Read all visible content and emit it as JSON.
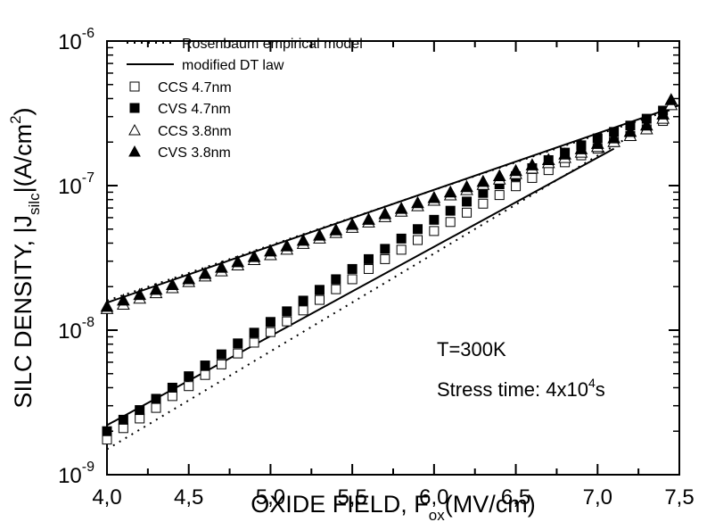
{
  "chart_data": {
    "type": "scatter",
    "title": "",
    "xlabel": {
      "main": "OXIDE FIELD, F",
      "sub": "ox",
      "tail": "(MV/cm)"
    },
    "ylabel": {
      "main": "SILC DENSITY, |J",
      "sub": "silc",
      "mid": "|(A/cm",
      "sup": "2",
      "tail": ")"
    },
    "x_scale": "linear",
    "y_scale": "log",
    "xlim": [
      4.0,
      7.5
    ],
    "ylim": [
      1e-09,
      1e-06
    ],
    "x_ticks": [
      4.0,
      4.5,
      5.0,
      5.5,
      6.0,
      6.5,
      7.0,
      7.5
    ],
    "x_tick_labels": [
      "4,0",
      "4,5",
      "5,0",
      "5,5",
      "6,0",
      "6,5",
      "7,0",
      "7,5"
    ],
    "y_ticks": [
      {
        "value": 1e-09,
        "base": "10",
        "exp": "-9"
      },
      {
        "value": 1e-08,
        "base": "10",
        "exp": "-8"
      },
      {
        "value": 1e-07,
        "base": "10",
        "exp": "-7"
      },
      {
        "value": 1e-06,
        "base": "10",
        "exp": "-6"
      }
    ],
    "grid": false,
    "legend_position": "top-left",
    "annotations": {
      "temperature": "T=300K",
      "stress_prefix": "Stress time: 4x10",
      "stress_exp": "4",
      "stress_suffix": "s"
    },
    "series": [
      {
        "name": "Rosenbaum empirical model",
        "kind": "line",
        "style": "dotted",
        "segments": [
          {
            "x": [
              4.0,
              7.2
            ],
            "y": [
              1.5e-09,
              2.2e-07
            ]
          },
          {
            "x": [
              4.0,
              7.5
            ],
            "y": [
              1.6e-08,
              3.5e-07
            ]
          }
        ]
      },
      {
        "name": "modified DT law",
        "kind": "line",
        "style": "solid",
        "segments": [
          {
            "x": [
              4.0,
              7.1
            ],
            "y": [
              2.2e-09,
              1.8e-07
            ]
          },
          {
            "x": [
              4.0,
              7.5
            ],
            "y": [
              1.55e-08,
              3.6e-07
            ]
          }
        ]
      },
      {
        "name": "CCS 4.7nm",
        "kind": "marker",
        "marker": "square-open",
        "x": [
          4.0,
          4.1,
          4.2,
          4.3,
          4.4,
          4.5,
          4.6,
          4.7,
          4.8,
          4.9,
          5.0,
          5.1,
          5.2,
          5.3,
          5.4,
          5.5,
          5.6,
          5.7,
          5.8,
          5.9,
          6.0,
          6.1,
          6.2,
          6.3,
          6.4,
          6.5,
          6.6,
          6.7,
          6.8,
          6.9,
          7.0,
          7.1,
          7.2,
          7.3,
          7.4
        ],
        "y": [
          1.75e-09,
          2.1e-09,
          2.45e-09,
          2.9e-09,
          3.5e-09,
          4.1e-09,
          4.9e-09,
          5.8e-09,
          6.9e-09,
          8.2e-09,
          9.7e-09,
          1.15e-08,
          1.37e-08,
          1.62e-08,
          1.92e-08,
          2.25e-08,
          2.65e-08,
          3.1e-08,
          3.6e-08,
          4.2e-08,
          4.85e-08,
          5.6e-08,
          6.5e-08,
          7.5e-08,
          8.6e-08,
          9.9e-08,
          1.13e-07,
          1.28e-07,
          1.45e-07,
          1.62e-07,
          1.8e-07,
          2e-07,
          2.2e-07,
          2.45e-07,
          2.8e-07
        ]
      },
      {
        "name": "CVS 4.7nm",
        "kind": "marker",
        "marker": "square-filled",
        "x": [
          4.0,
          4.1,
          4.2,
          4.3,
          4.4,
          4.5,
          4.6,
          4.7,
          4.8,
          4.9,
          5.0,
          5.1,
          5.2,
          5.3,
          5.4,
          5.5,
          5.6,
          5.7,
          5.8,
          5.9,
          6.0,
          6.1,
          6.2,
          6.3,
          6.4,
          6.5,
          6.6,
          6.7,
          6.8,
          6.9,
          7.0,
          7.1,
          7.2,
          7.3,
          7.4
        ],
        "y": [
          2e-09,
          2.4e-09,
          2.8e-09,
          3.35e-09,
          4e-09,
          4.8e-09,
          5.7e-09,
          6.8e-09,
          8.1e-09,
          9.6e-09,
          1.14e-08,
          1.35e-08,
          1.6e-08,
          1.9e-08,
          2.25e-08,
          2.65e-08,
          3.1e-08,
          3.65e-08,
          4.3e-08,
          5e-08,
          5.8e-08,
          6.7e-08,
          7.75e-08,
          8.9e-08,
          1.02e-07,
          1.16e-07,
          1.32e-07,
          1.5e-07,
          1.69e-07,
          1.9e-07,
          2.12e-07,
          2.35e-07,
          2.6e-07,
          2.9e-07,
          3.3e-07
        ]
      },
      {
        "name": "CCS 3.8nm",
        "kind": "marker",
        "marker": "triangle-open",
        "x": [
          4.0,
          4.1,
          4.2,
          4.3,
          4.4,
          4.5,
          4.6,
          4.7,
          4.8,
          4.9,
          5.0,
          5.1,
          5.2,
          5.3,
          5.4,
          5.5,
          5.6,
          5.7,
          5.8,
          5.9,
          6.0,
          6.1,
          6.2,
          6.3,
          6.4,
          6.5,
          6.6,
          6.7,
          6.8,
          6.9,
          7.0,
          7.1,
          7.2,
          7.3,
          7.4,
          7.45
        ],
        "y": [
          1.4e-08,
          1.5e-08,
          1.65e-08,
          1.8e-08,
          1.95e-08,
          2.15e-08,
          2.35e-08,
          2.55e-08,
          2.8e-08,
          3.05e-08,
          3.3e-08,
          3.6e-08,
          3.95e-08,
          4.3e-08,
          4.7e-08,
          5.1e-08,
          5.55e-08,
          6.05e-08,
          6.6e-08,
          7.2e-08,
          7.85e-08,
          8.55e-08,
          9.3e-08,
          1.01e-07,
          1.1e-07,
          1.2e-07,
          1.31e-07,
          1.43e-07,
          1.55e-07,
          1.69e-07,
          1.85e-07,
          2e-07,
          2.2e-07,
          2.45e-07,
          2.9e-07,
          3.6e-07
        ]
      },
      {
        "name": "CVS 3.8nm",
        "kind": "marker",
        "marker": "triangle-filled",
        "x": [
          4.0,
          4.1,
          4.2,
          4.3,
          4.4,
          4.5,
          4.6,
          4.7,
          4.8,
          4.9,
          5.0,
          5.1,
          5.2,
          5.3,
          5.4,
          5.5,
          5.6,
          5.7,
          5.8,
          5.9,
          6.0,
          6.1,
          6.2,
          6.3,
          6.4,
          6.5,
          6.6,
          6.7,
          6.8,
          6.9,
          7.0,
          7.1,
          7.2,
          7.3,
          7.4,
          7.45
        ],
        "y": [
          1.45e-08,
          1.6e-08,
          1.75e-08,
          1.9e-08,
          2.05e-08,
          2.25e-08,
          2.45e-08,
          2.7e-08,
          2.95e-08,
          3.2e-08,
          3.5e-08,
          3.8e-08,
          4.15e-08,
          4.5e-08,
          4.9e-08,
          5.35e-08,
          5.8e-08,
          6.35e-08,
          6.9e-08,
          7.55e-08,
          8.2e-08,
          8.95e-08,
          9.75e-08,
          1.06e-07,
          1.16e-07,
          1.26e-07,
          1.38e-07,
          1.5e-07,
          1.64e-07,
          1.78e-07,
          1.94e-07,
          2.12e-07,
          2.35e-07,
          2.6e-07,
          3.1e-07,
          3.9e-07
        ]
      }
    ]
  }
}
